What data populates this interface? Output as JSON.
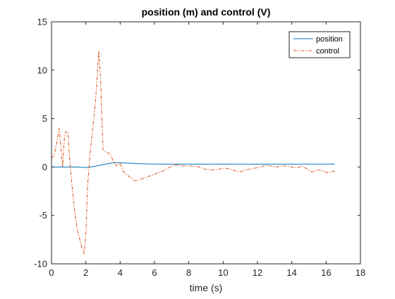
{
  "chart_data": {
    "type": "line",
    "title": "position (m) and control (V)",
    "xlabel": "time (s)",
    "ylabel": "",
    "xlim": [
      0,
      18
    ],
    "ylim": [
      -10,
      15
    ],
    "xticks": [
      0,
      2,
      4,
      6,
      8,
      10,
      12,
      14,
      16,
      18
    ],
    "yticks": [
      -10,
      -5,
      0,
      5,
      10,
      15
    ],
    "grid": false,
    "legend_location": "top-right",
    "series": [
      {
        "name": "position",
        "color": "#0072BD",
        "style": "solid",
        "x": [
          0,
          0.5,
          1.0,
          1.5,
          2.0,
          2.3,
          2.6,
          3.0,
          3.3,
          3.6,
          4.0,
          4.5,
          5.0,
          6.0,
          8.0,
          10.0,
          12.0,
          14.0,
          16.5
        ],
        "y": [
          0,
          0,
          0,
          0,
          -0.05,
          0.0,
          0.1,
          0.25,
          0.35,
          0.45,
          0.45,
          0.4,
          0.35,
          0.3,
          0.3,
          0.3,
          0.3,
          0.3,
          0.3
        ]
      },
      {
        "name": "control",
        "color": "#D95319",
        "style": "dashdot",
        "x": [
          0,
          0.15,
          0.3,
          0.45,
          0.55,
          0.65,
          0.75,
          0.85,
          0.95,
          1.05,
          1.2,
          1.35,
          1.5,
          1.65,
          1.8,
          1.9,
          2.0,
          2.1,
          2.25,
          2.4,
          2.55,
          2.65,
          2.75,
          2.85,
          3.0,
          3.2,
          3.4,
          3.6,
          3.8,
          4.0,
          4.2,
          4.4,
          4.6,
          4.8,
          5.0,
          5.3,
          5.6,
          5.9,
          6.2,
          6.5,
          6.8,
          7.1,
          7.4,
          7.7,
          8.0,
          8.3,
          8.6,
          8.9,
          9.2,
          9.5,
          9.8,
          10.1,
          10.4,
          10.7,
          11.0,
          11.3,
          11.6,
          11.9,
          12.2,
          12.5,
          12.8,
          13.1,
          13.4,
          13.7,
          14.0,
          14.3,
          14.6,
          14.9,
          15.2,
          15.5,
          15.8,
          16.1,
          16.4,
          16.5
        ],
        "y": [
          0.9,
          1.2,
          2.5,
          4.0,
          2.0,
          0.0,
          3.0,
          3.7,
          3.6,
          1.0,
          -2.0,
          -4.5,
          -6.5,
          -7.5,
          -8.5,
          -9.0,
          -7.0,
          -2.0,
          1.5,
          4.0,
          6.5,
          9.0,
          12.0,
          9.5,
          1.8,
          1.5,
          1.4,
          0.6,
          0.1,
          0.4,
          -0.5,
          -0.8,
          -1.1,
          -1.4,
          -1.4,
          -1.2,
          -1.0,
          -0.8,
          -0.6,
          -0.4,
          -0.1,
          0.2,
          0.2,
          0.1,
          0.1,
          0.1,
          0.0,
          -0.2,
          -0.3,
          -0.3,
          -0.2,
          -0.1,
          -0.2,
          -0.4,
          -0.5,
          -0.3,
          -0.2,
          -0.1,
          0.0,
          0.2,
          0.1,
          0.0,
          0.1,
          0.1,
          0.0,
          -0.1,
          0.1,
          -0.2,
          -0.5,
          -0.3,
          -0.4,
          -0.6,
          -0.4,
          -0.5
        ]
      }
    ]
  }
}
